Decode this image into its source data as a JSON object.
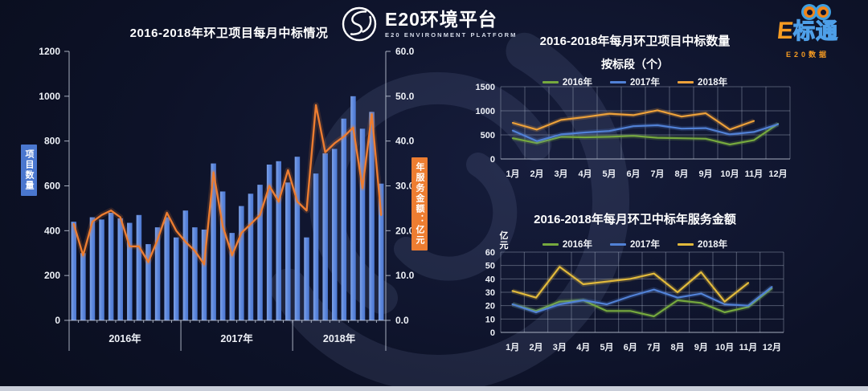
{
  "header": {
    "platform_logo": {
      "title": "E20环境平台",
      "subtitle": "E20 ENVIRONMENT PLATFORM"
    },
    "ebiaotong_logo": {
      "title_e": "E",
      "title_rest": "标通",
      "subtitle": "E20数据"
    }
  },
  "chart_data": [
    {
      "id": "monthly-win-combo",
      "type": "combo-bar-line",
      "title": "2016-2018年环卫项目每月中标情况",
      "left_axis": {
        "label": "项目数量",
        "min": 0,
        "max": 1200,
        "tick_labels": [
          "0",
          "200",
          "400",
          "600",
          "800",
          "1000",
          "1200"
        ]
      },
      "right_axis": {
        "label": "年服务金额：亿元",
        "min": 0,
        "max": 60,
        "tick_labels": [
          "0.0",
          "10.0",
          "20.0",
          "30.0",
          "40.0",
          "50.0",
          "60.0"
        ]
      },
      "groups": [
        {
          "label": "2016年",
          "months": 12
        },
        {
          "label": "2017年",
          "months": 12
        },
        {
          "label": "2018年",
          "months": 10
        }
      ],
      "grid": false,
      "bar_series": {
        "color": "#5b86dc",
        "values": [
          440,
          300,
          460,
          450,
          480,
          455,
          435,
          470,
          340,
          415,
          460,
          370,
          490,
          415,
          405,
          700,
          575,
          390,
          510,
          565,
          605,
          695,
          710,
          615,
          730,
          370,
          655,
          745,
          765,
          900,
          1000,
          855,
          930,
          610
        ]
      },
      "line_series": {
        "color": "#ed7d31",
        "values": [
          21.5,
          14.5,
          22,
          23.5,
          24.5,
          23,
          16.5,
          16.5,
          13,
          18,
          24,
          20,
          17.5,
          15.5,
          12.5,
          33,
          21,
          14.5,
          19.5,
          21.5,
          23.5,
          30,
          26.5,
          33.5,
          26.5,
          24.5,
          48,
          37.5,
          39.5,
          41,
          43,
          29.5,
          46,
          23.5
        ]
      }
    },
    {
      "id": "monthly-count-by-section",
      "type": "line",
      "title": "2016-2018年每月环卫项目中标数量",
      "subtitle": "按标段（个）",
      "grid": true,
      "legend_position": "top",
      "x_labels": [
        "1月",
        "2月",
        "3月",
        "4月",
        "5月",
        "6月",
        "7月",
        "8月",
        "9月",
        "10月",
        "11月",
        "12月"
      ],
      "y_axis": {
        "min": 0,
        "max": 1500,
        "tick_labels": [
          "0",
          "500",
          "1000",
          "1500"
        ]
      },
      "series": [
        {
          "name": "2016年",
          "color": "#76a93e",
          "values": [
            430,
            330,
            460,
            450,
            460,
            480,
            440,
            430,
            420,
            300,
            390,
            730
          ]
        },
        {
          "name": "2017年",
          "color": "#5181d6",
          "values": [
            590,
            370,
            510,
            550,
            580,
            680,
            700,
            630,
            640,
            510,
            560,
            720
          ]
        },
        {
          "name": "2018年",
          "color": "#eda13a",
          "values": [
            750,
            610,
            810,
            870,
            940,
            910,
            1010,
            880,
            950,
            610,
            790
          ]
        }
      ]
    },
    {
      "id": "monthly-amount",
      "type": "line",
      "title": "2016-2018年每月环卫中标年服务金额",
      "unit_label": "亿元",
      "grid": true,
      "legend_position": "top",
      "x_labels": [
        "1月",
        "2月",
        "3月",
        "4月",
        "5月",
        "6月",
        "7月",
        "8月",
        "9月",
        "10月",
        "11月",
        "12月"
      ],
      "y_axis": {
        "min": 0,
        "max": 60,
        "tick_labels": [
          "0",
          "10",
          "20",
          "30",
          "40",
          "50",
          "60"
        ]
      },
      "series": [
        {
          "name": "2016年",
          "color": "#76a93e",
          "values": [
            21,
            16,
            23,
            24,
            16,
            16,
            12,
            24,
            22,
            15,
            19,
            33
          ]
        },
        {
          "name": "2017年",
          "color": "#5181d6",
          "values": [
            21,
            15,
            21,
            24,
            21,
            27,
            32,
            26,
            29,
            21,
            20,
            34
          ]
        },
        {
          "name": "2018年",
          "color": "#e2ba3c",
          "values": [
            31,
            26,
            49,
            36,
            38,
            40,
            44,
            30,
            45,
            23,
            37
          ]
        }
      ]
    }
  ]
}
